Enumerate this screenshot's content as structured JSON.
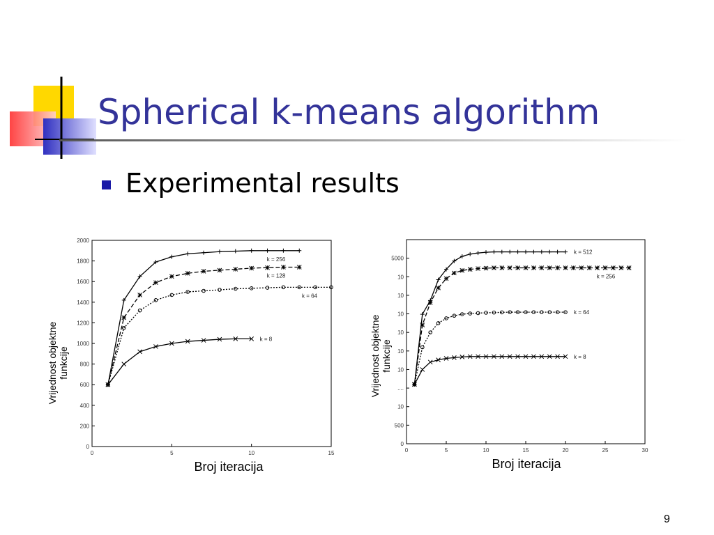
{
  "slide": {
    "title": "Spherical k-means algorithm",
    "bullet": "Experimental results",
    "page_number": "9"
  },
  "chart_data": [
    {
      "type": "line",
      "xlabel": "Broj iteracija",
      "ylabel": "Vrijednost objektne funkcije",
      "xlim": [
        0,
        15
      ],
      "xticks": [
        0,
        5,
        10,
        15
      ],
      "ylim": [
        0,
        2000
      ],
      "yticks": [
        0,
        200,
        400,
        600,
        800,
        1000,
        1200,
        1400,
        1600,
        1800,
        2000
      ],
      "series": [
        {
          "name": "k = 256",
          "color": "#000000",
          "x": [
            1,
            2,
            3,
            4,
            5,
            6,
            7,
            8,
            9,
            10,
            11,
            12,
            13
          ],
          "values": [
            600,
            1420,
            1650,
            1790,
            1840,
            1870,
            1880,
            1890,
            1895,
            1900,
            1900,
            1900,
            1900
          ]
        },
        {
          "name": "k = 128",
          "color": "#000000",
          "x": [
            1,
            2,
            3,
            4,
            5,
            6,
            7,
            8,
            9,
            10,
            11,
            12,
            13
          ],
          "values": [
            600,
            1250,
            1470,
            1590,
            1650,
            1680,
            1700,
            1710,
            1720,
            1730,
            1735,
            1740,
            1740
          ]
        },
        {
          "name": "k = 64",
          "color": "#000000",
          "x": [
            1,
            2,
            3,
            4,
            5,
            6,
            7,
            8,
            9,
            10,
            11,
            12,
            13,
            14,
            15
          ],
          "values": [
            600,
            1150,
            1320,
            1420,
            1470,
            1500,
            1510,
            1520,
            1530,
            1535,
            1540,
            1545,
            1545,
            1545,
            1545
          ]
        },
        {
          "name": "k = 8",
          "color": "#000000",
          "x": [
            1,
            2,
            3,
            4,
            5,
            6,
            7,
            8,
            9,
            10
          ],
          "values": [
            600,
            800,
            920,
            970,
            1000,
            1020,
            1030,
            1040,
            1045,
            1045
          ]
        }
      ]
    },
    {
      "type": "line",
      "xlabel": "Broj iteracija",
      "ylabel": "Vrijednost objektne funkcije",
      "xlim": [
        0,
        30
      ],
      "xticks": [
        0,
        5,
        10,
        15,
        20,
        25,
        30
      ],
      "ylim": [
        0,
        5500
      ],
      "yticks": [
        0,
        500,
        {
          "value": 1000,
          "label": "10"
        },
        {
          "value": 1500,
          "label": "...."
        },
        {
          "value": 2000,
          "label": "10"
        },
        {
          "value": 2500,
          "label": "10"
        },
        {
          "value": 3000,
          "label": "10"
        },
        {
          "value": 3500,
          "label": "10"
        },
        {
          "value": 4000,
          "label": "10"
        },
        {
          "value": 4500,
          "label": "10"
        },
        5000
      ],
      "series": [
        {
          "name": "k = 512",
          "color": "#000000",
          "x": [
            1,
            2,
            3,
            4,
            5,
            6,
            7,
            8,
            9,
            10,
            11,
            12,
            13,
            14,
            15,
            16,
            17,
            18,
            19,
            20
          ],
          "values": [
            1600,
            3490,
            3860,
            4420,
            4700,
            4925,
            5050,
            5110,
            5140,
            5160,
            5170,
            5170,
            5170,
            5170,
            5170,
            5170,
            5170,
            5170,
            5170,
            5170
          ]
        },
        {
          "name": "k = 256",
          "color": "#000000",
          "x": [
            1,
            2,
            3,
            4,
            5,
            6,
            7,
            8,
            9,
            10,
            11,
            12,
            13,
            14,
            15,
            16,
            17,
            18,
            19,
            20,
            21,
            22,
            23,
            24,
            25,
            26,
            27,
            28
          ],
          "values": [
            1600,
            3200,
            3800,
            4200,
            4450,
            4600,
            4670,
            4700,
            4720,
            4730,
            4740,
            4740,
            4740,
            4740,
            4740,
            4740,
            4740,
            4740,
            4740,
            4740,
            4740,
            4740,
            4740,
            4740,
            4740,
            4740,
            4740,
            4740
          ]
        },
        {
          "name": "k = 64",
          "color": "#000000",
          "x": [
            1,
            2,
            3,
            4,
            5,
            6,
            7,
            8,
            9,
            10,
            11,
            12,
            13,
            14,
            15,
            16,
            17,
            18,
            19,
            20
          ],
          "values": [
            1600,
            2600,
            3000,
            3250,
            3380,
            3450,
            3490,
            3510,
            3520,
            3530,
            3535,
            3540,
            3545,
            3545,
            3545,
            3545,
            3545,
            3545,
            3545,
            3545
          ]
        },
        {
          "name": "k = 8",
          "color": "#000000",
          "x": [
            1,
            2,
            3,
            4,
            5,
            6,
            7,
            8,
            9,
            10,
            11,
            12,
            13,
            14,
            15,
            16,
            17,
            18,
            19,
            20
          ],
          "values": [
            1600,
            2000,
            2200,
            2260,
            2300,
            2320,
            2340,
            2350,
            2350,
            2350,
            2350,
            2350,
            2350,
            2350,
            2350,
            2350,
            2350,
            2350,
            2350,
            2350
          ]
        }
      ]
    }
  ]
}
